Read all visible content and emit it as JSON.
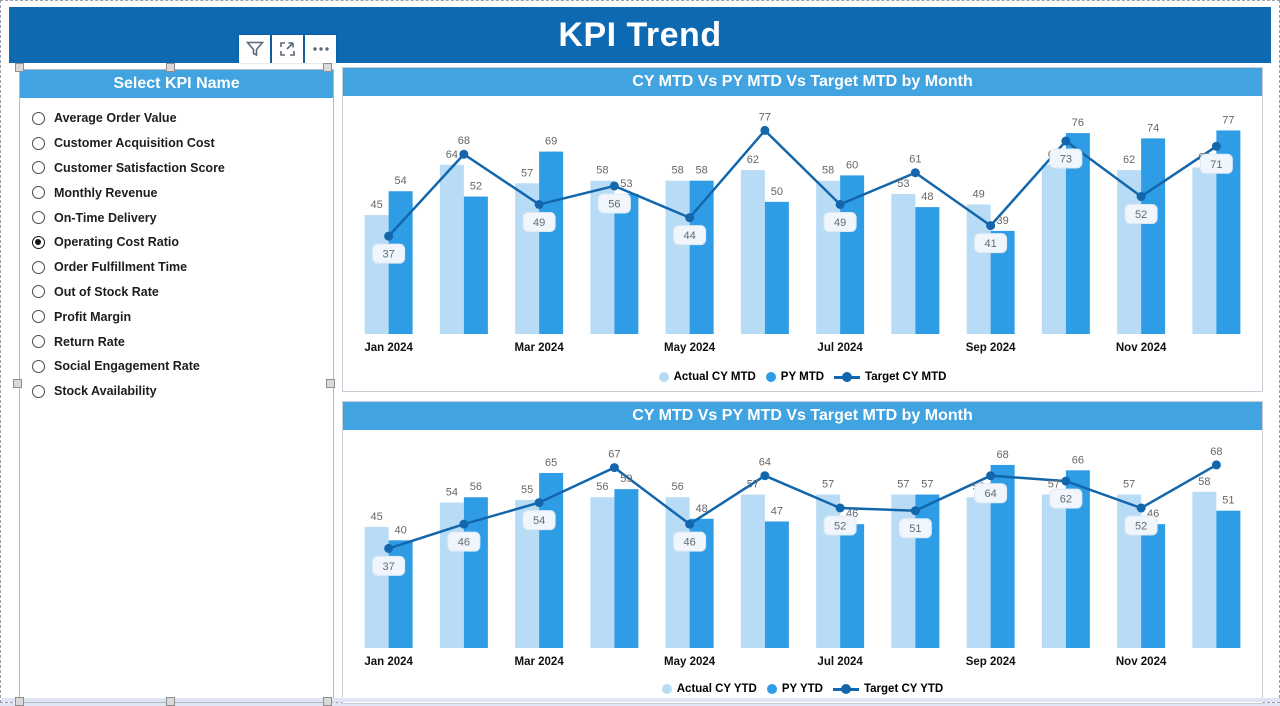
{
  "page": {
    "title": "KPI Trend"
  },
  "toolbar": {
    "buttons": [
      "filter",
      "focus-mode",
      "more-options"
    ]
  },
  "slicer": {
    "header": "Select KPI Name",
    "selected": "Operating Cost Ratio",
    "selected_index": 5,
    "options": [
      "Average Order Value",
      "Customer Acquisition Cost",
      "Customer Satisfaction Score",
      "Monthly Revenue",
      "On-Time Delivery",
      "Operating Cost Ratio",
      "Order Fulfillment Time",
      "Out of Stock Rate",
      "Profit Margin",
      "Return Rate",
      "Social Engagement Rate",
      "Stock Availability"
    ]
  },
  "colors": {
    "banner_blue": "#0e69b3",
    "header_blue": "#41a4e0",
    "bar_light": "#b9dcf6",
    "bar_medium": "#2f9ce6",
    "line_dark": "#1266ab",
    "value_label_gray": "#666666",
    "line_label_box_bg": "#f0f6fc",
    "axis_text": "#111111"
  },
  "chart_data": [
    {
      "type": "bar",
      "subtype": "grouped-columns-with-line",
      "title": "CY MTD Vs PY MTD Vs Target MTD by Month",
      "categories": [
        "Jan 2024",
        "Feb 2024",
        "Mar 2024",
        "Apr 2024",
        "May 2024",
        "Jun 2024",
        "Jul 2024",
        "Aug 2024",
        "Sep 2024",
        "Oct 2024",
        "Nov 2024",
        "Dec 2024"
      ],
      "x_axis_labels_shown": [
        "Jan 2024",
        "Mar 2024",
        "May 2024",
        "Jul 2024",
        "Sep 2024",
        "Nov 2024"
      ],
      "series": [
        {
          "name": "Actual CY MTD",
          "type": "bar",
          "color_key": "bar_light",
          "values": [
            45,
            64,
            57,
            58,
            58,
            62,
            58,
            53,
            49,
            64,
            62,
            63
          ]
        },
        {
          "name": "PY MTD",
          "type": "bar",
          "color_key": "bar_medium",
          "values": [
            54,
            52,
            69,
            53,
            58,
            50,
            60,
            48,
            39,
            76,
            74,
            77
          ]
        },
        {
          "name": "Target CY MTD",
          "type": "line",
          "color_key": "line_dark",
          "values": [
            37,
            68,
            49,
            56,
            44,
            77,
            49,
            61,
            41,
            73,
            52,
            71
          ]
        }
      ],
      "data_labels": true,
      "legend_position": "bottom",
      "grid": false,
      "ylim": [
        0,
        87
      ]
    },
    {
      "type": "bar",
      "subtype": "grouped-columns-with-line",
      "title": "CY MTD Vs PY MTD Vs Target MTD by Month",
      "categories": [
        "Jan 2024",
        "Feb 2024",
        "Mar 2024",
        "Apr 2024",
        "May 2024",
        "Jun 2024",
        "Jul 2024",
        "Aug 2024",
        "Sep 2024",
        "Oct 2024",
        "Nov 2024",
        "Dec 2024"
      ],
      "x_axis_labels_shown": [
        "Jan 2024",
        "Mar 2024",
        "May 2024",
        "Jul 2024",
        "Sep 2024",
        "Nov 2024"
      ],
      "series": [
        {
          "name": "Actual CY YTD",
          "type": "bar",
          "color_key": "bar_light",
          "values": [
            45,
            54,
            55,
            56,
            56,
            57,
            57,
            57,
            56,
            57,
            57,
            58
          ]
        },
        {
          "name": "PY YTD",
          "type": "bar",
          "color_key": "bar_medium",
          "values": [
            40,
            56,
            65,
            59,
            48,
            47,
            46,
            57,
            68,
            66,
            46,
            51
          ]
        },
        {
          "name": "Target CY YTD",
          "type": "line",
          "color_key": "line_dark",
          "values": [
            37,
            46,
            54,
            67,
            46,
            64,
            52,
            51,
            64,
            62,
            52,
            68
          ]
        }
      ],
      "data_labels": true,
      "legend_position": "bottom",
      "grid": false,
      "ylim": [
        0,
        78
      ]
    }
  ]
}
